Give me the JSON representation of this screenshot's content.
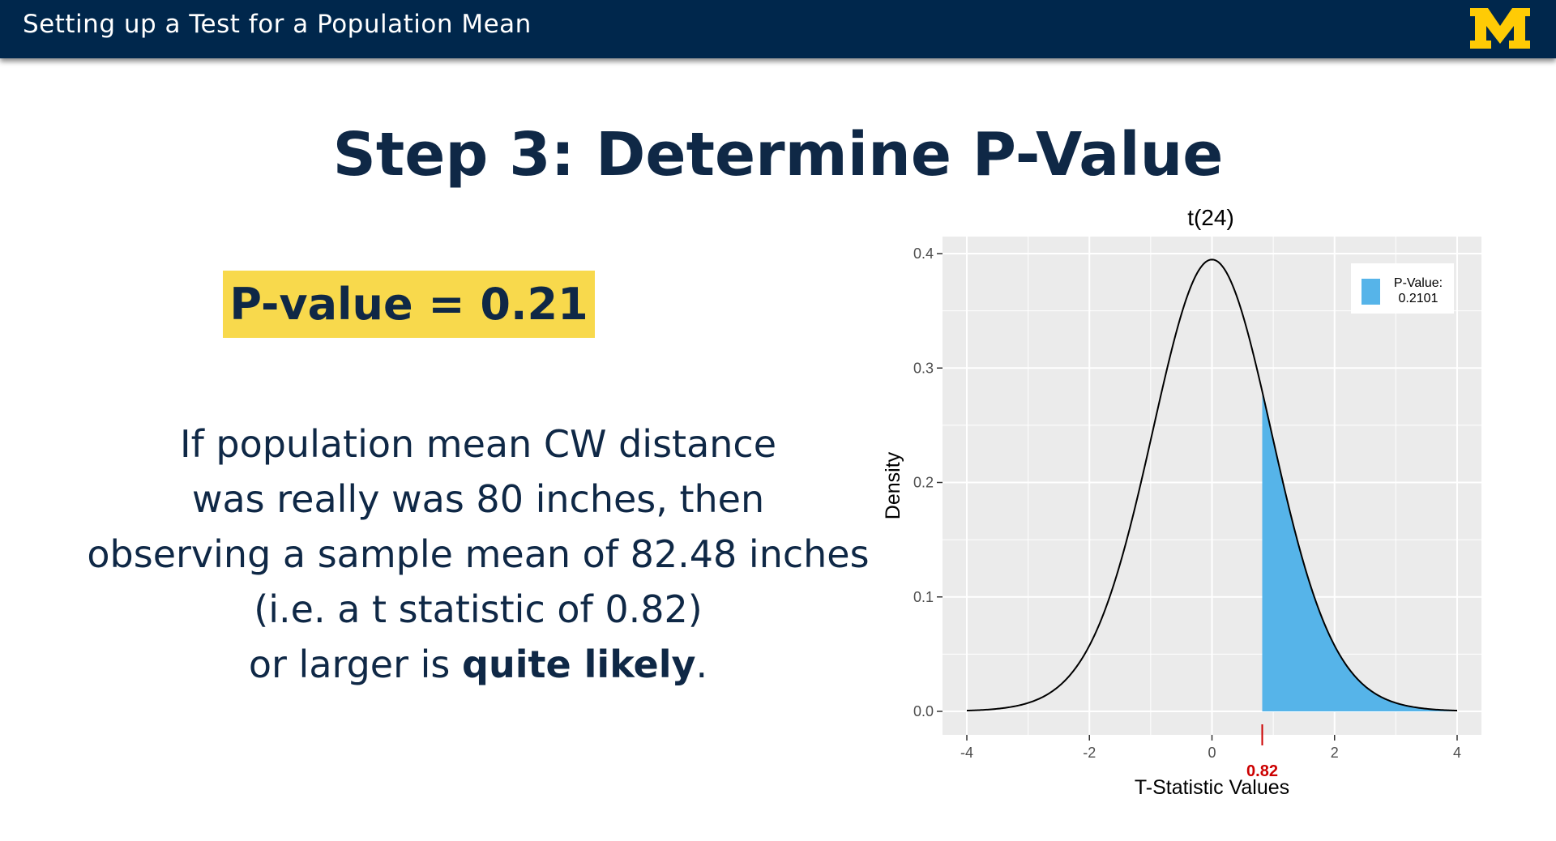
{
  "header": {
    "title": "Setting up a Test for a Population Mean",
    "logo_letter": "M",
    "bar_color": "#00274c",
    "logo_color": "#ffcb05"
  },
  "slide": {
    "heading": "Step 3: Determine P-Value",
    "pvalue_label": "P-value = 0.21",
    "pvalue_box_color": "#f8d94c",
    "explanation": {
      "line1": "If population mean CW distance",
      "line2": "was really was 80 inches, then",
      "line3": "observing a sample mean of 82.48 inches",
      "line4": "(i.e. a t statistic of 0.82)",
      "line5_start": "or larger is ",
      "line5_bold": "quite likely",
      "line5_end": "."
    }
  },
  "chart_data": {
    "type": "area",
    "title": "t(24)",
    "distribution": "t",
    "df": 24,
    "xlabel": "T-Statistic Values",
    "ylabel": "Density",
    "xlim": [
      -4,
      4
    ],
    "ylim": [
      0,
      0.4
    ],
    "x_ticks": [
      -4,
      -2,
      0,
      2,
      4
    ],
    "x_tick_labels": [
      "-4",
      "-2",
      "0",
      "2",
      "4"
    ],
    "y_ticks": [
      0.0,
      0.1,
      0.2,
      0.3,
      0.4
    ],
    "y_tick_labels": [
      "0.0",
      "0.1",
      "0.2",
      "0.3",
      "0.4"
    ],
    "observed_t": 0.82,
    "observed_label": "0.82",
    "observed_color": "#cc0000",
    "shaded_region": [
      0.82,
      4
    ],
    "shade_color": "#56b4e9",
    "curve_color": "#000000",
    "panel_bg": "#ebebeb",
    "grid": true,
    "legend": {
      "position": "top-right",
      "title": "P-Value:",
      "value": "0.2101"
    }
  }
}
